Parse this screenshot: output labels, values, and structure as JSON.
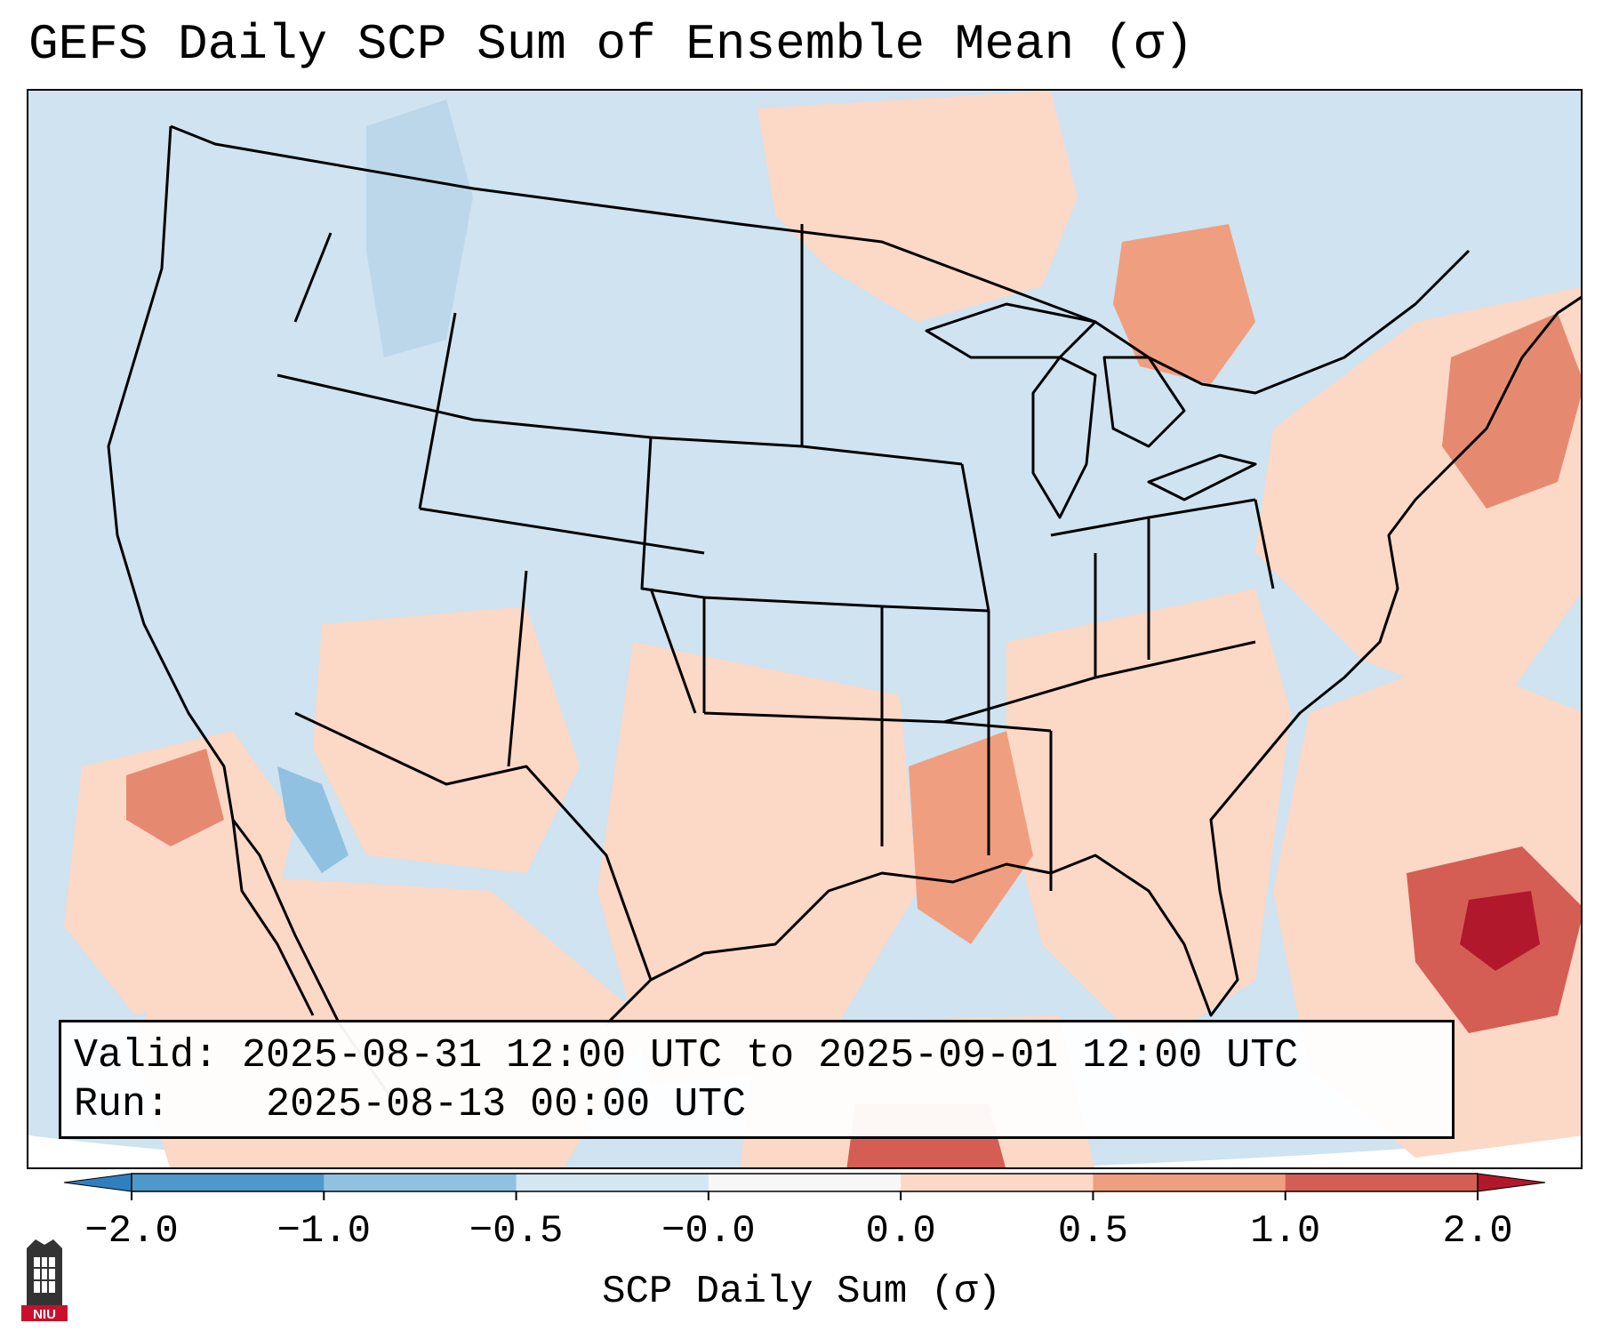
{
  "title": "GEFS Daily SCP Sum of Ensemble Mean (σ)",
  "valid_box": {
    "valid_label": "Valid:",
    "valid_range": "2025-08-31 12:00 UTC to 2025-09-01 12:00 UTC",
    "run_label": "Run:",
    "run_time": "2025-08-13 00:00 UTC"
  },
  "colorbar": {
    "label": "SCP Daily Sum (σ)",
    "ticks": [
      "−2.0",
      "−1.0",
      "−0.5",
      "−0.0",
      "0.0",
      "0.5",
      "1.0",
      "2.0"
    ],
    "colors": [
      "#2f7fbf",
      "#4f98cc",
      "#91c1e0",
      "#d3e6f1",
      "#f7f7f7",
      "#fcd8c6",
      "#f09e80",
      "#d45e54",
      "#b2182b"
    ]
  },
  "chart_data": {
    "type": "heatmap",
    "title": "GEFS Daily SCP Sum of Ensemble Mean (σ)",
    "variable": "SCP Daily Sum (σ)",
    "levels": [
      -2.0,
      -1.0,
      -0.5,
      -0.0,
      0.0,
      0.5,
      1.0,
      2.0
    ],
    "extend": "both"
  },
  "logo": {
    "text": "NIU"
  }
}
